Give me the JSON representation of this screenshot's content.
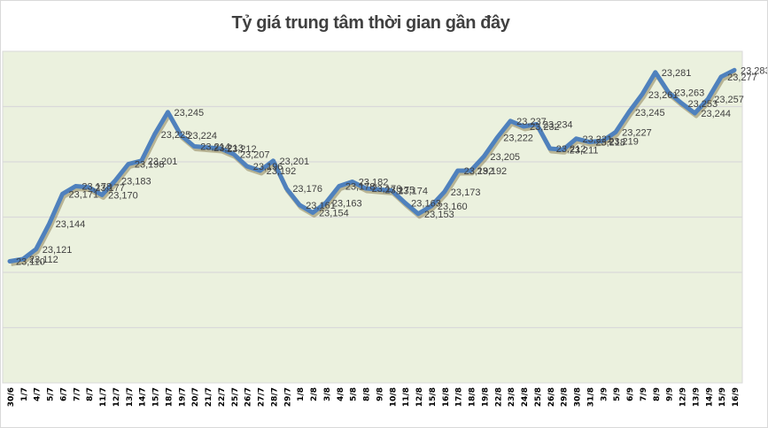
{
  "chart_data": {
    "type": "line",
    "title": "Tỷ giá trung tâm thời gian gần đây",
    "xlabel": "",
    "ylabel": "",
    "categories": [
      "30/6",
      "1/7",
      "4/7",
      "5/7",
      "6/7",
      "7/7",
      "8/7",
      "11/7",
      "12/7",
      "13/7",
      "14/7",
      "15/7",
      "18/7",
      "19/7",
      "20/7",
      "21/7",
      "22/7",
      "25/7",
      "26/7",
      "27/7",
      "28/7",
      "29/7",
      "1/8",
      "2/8",
      "3/8",
      "4/8",
      "5/8",
      "8/8",
      "9/8",
      "10/8",
      "11/8",
      "12/8",
      "15/8",
      "16/8",
      "17/8",
      "18/8",
      "19/8",
      "22/8",
      "23/8",
      "24/8",
      "25/8",
      "26/8",
      "29/8",
      "30/8",
      "31/8",
      "3/9",
      "5/9",
      "6/9",
      "7/9",
      "8/9",
      "9/9",
      "12/9",
      "13/9",
      "14/9",
      "15/9",
      "16/9"
    ],
    "values": [
      23110,
      23112,
      23121,
      23144,
      23171,
      23178,
      23177,
      23170,
      23183,
      23198,
      23201,
      23225,
      23245,
      23224,
      23214,
      23213,
      23212,
      23207,
      23196,
      23192,
      23201,
      23176,
      23161,
      23154,
      23163,
      23178,
      23182,
      23176,
      23175,
      23174,
      23163,
      23153,
      23160,
      23173,
      23192,
      23192,
      23205,
      23222,
      23237,
      23232,
      23234,
      23212,
      23211,
      23221,
      23218,
      23219,
      23227,
      23245,
      23261,
      23281,
      23263,
      23253,
      23244,
      23257,
      23277,
      23283
    ],
    "data_labels": [
      "23,110",
      "23,112",
      "23,121",
      "23,144",
      "23,171",
      "23,178",
      "23,177",
      "23,170",
      "23,183",
      "23,198",
      "23,201",
      "23,225",
      "23,245",
      "23,224",
      "23,214",
      "23,213",
      "23,212",
      "23,207",
      "23,196",
      "23,192",
      "23,201",
      "23,176",
      "23,161",
      "23,154",
      "23,163",
      "23,178",
      "23,182",
      "23,176",
      "23,175",
      "23,174",
      "23,163",
      "23,153",
      "23,160",
      "23,173",
      "23,192",
      "23,192",
      "23,205",
      "23,222",
      "23,237",
      "23,232",
      "23,234",
      "23,212",
      "23,211",
      "23,221",
      "23,218",
      "23,219",
      "23,227",
      "23,245",
      "23,261",
      "23,281",
      "23,263",
      "23,253",
      "23,244",
      "23,257",
      "23,277",
      "23,283"
    ],
    "ylim": [
      23000,
      23300
    ],
    "ytick_step": 50,
    "y_tick_labels_visible": false,
    "grid": true,
    "legend": "none"
  },
  "colors": {
    "line": "#4f81bd",
    "line_shadow": "#7a6a3a",
    "plot_background": "#ebf1de",
    "gridline": "#d9d9d9",
    "label_text": "#404040",
    "tick_text": "#000000"
  }
}
